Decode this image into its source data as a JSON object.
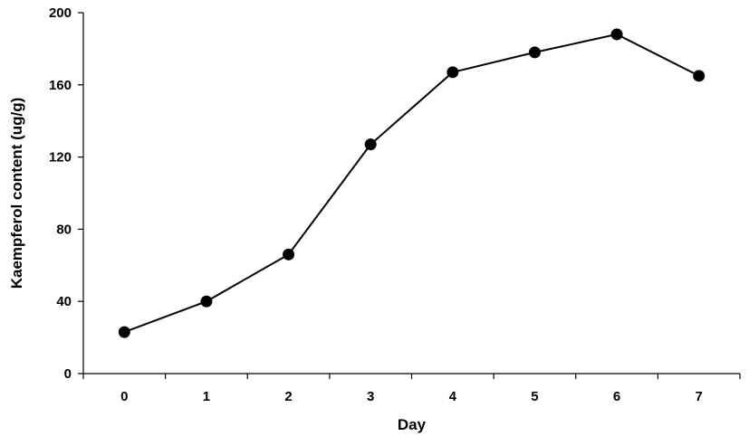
{
  "chart_data": {
    "type": "line",
    "title": "",
    "xlabel": "Day",
    "ylabel": "Kaempferol content (ug/g)",
    "x": [
      0,
      1,
      2,
      3,
      4,
      5,
      6,
      7
    ],
    "x_tick_labels": [
      "0",
      "1",
      "2",
      "3",
      "4",
      "5",
      "6",
      "7"
    ],
    "y_tick_labels": [
      "0",
      "40",
      "80",
      "120",
      "160",
      "200"
    ],
    "y_ticks": [
      0,
      40,
      80,
      120,
      160,
      200
    ],
    "xlim": [
      -0.5,
      7.5
    ],
    "ylim": [
      0,
      200
    ],
    "grid": false,
    "legend": "none",
    "series": [
      {
        "values": [
          23,
          40,
          66,
          127,
          167,
          178,
          188,
          165
        ],
        "color": "#000000",
        "marker": "circle"
      }
    ]
  }
}
